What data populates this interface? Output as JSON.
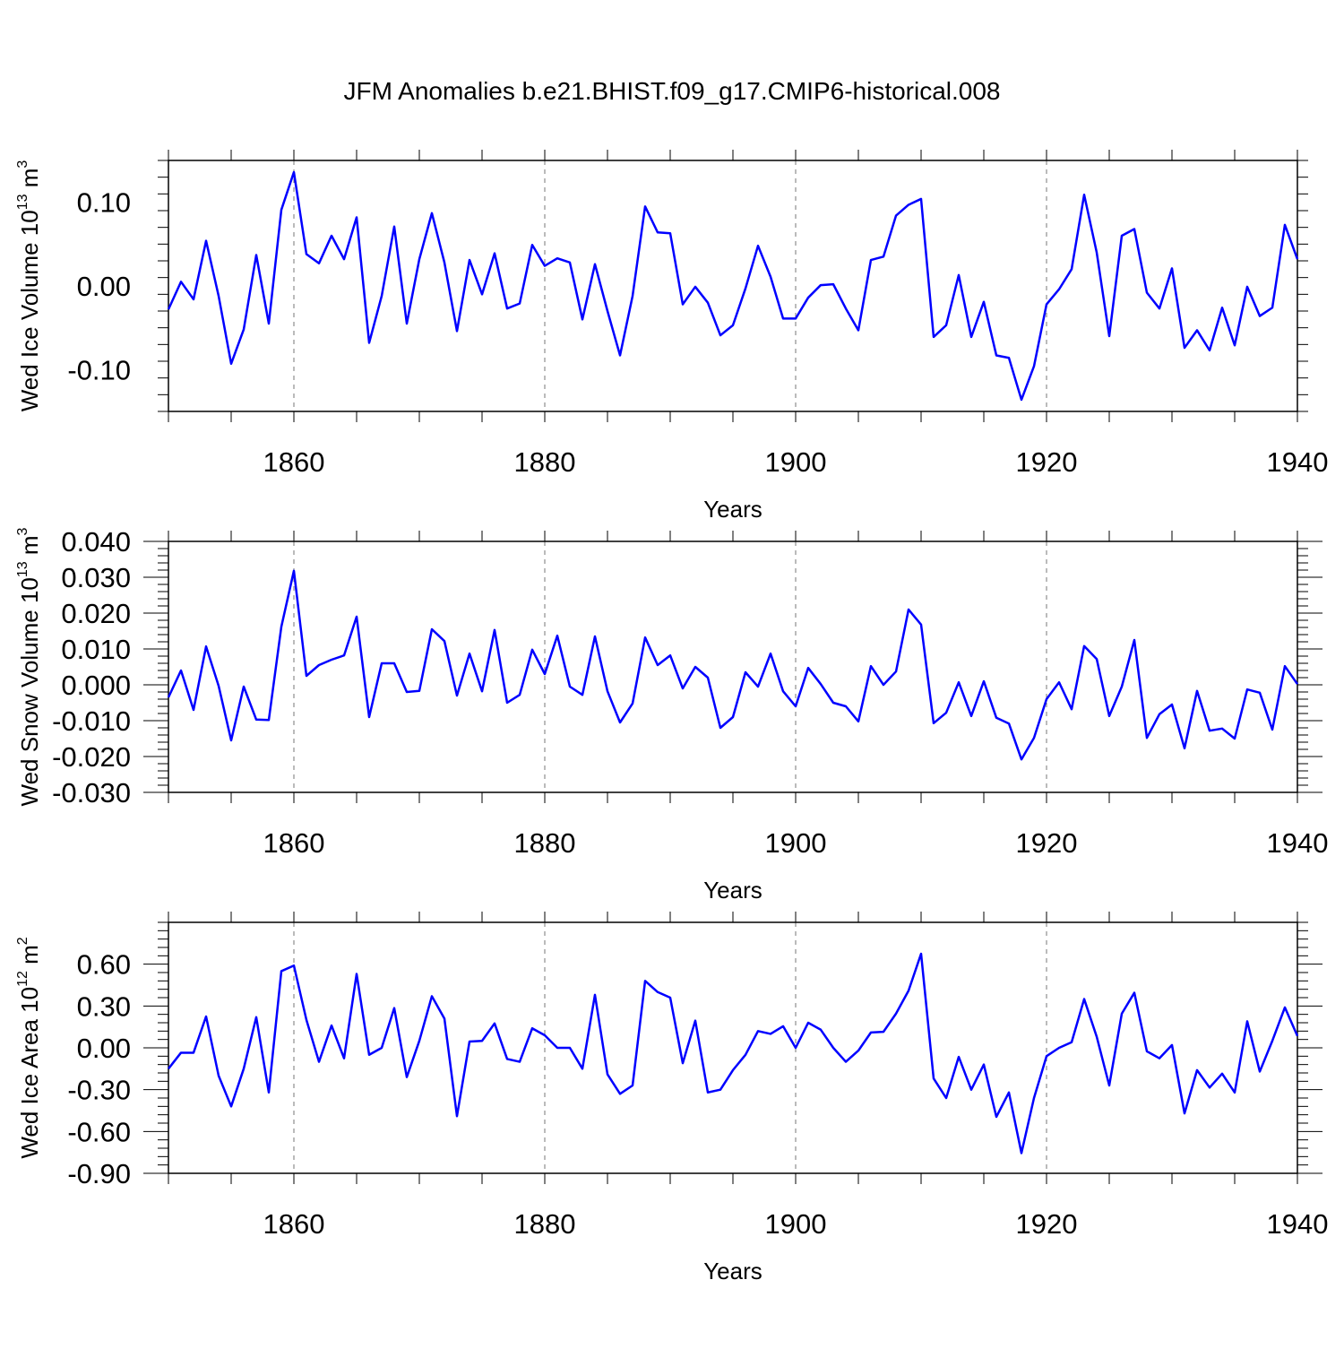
{
  "figure": {
    "title": "JFM Anomalies b.e21.BHIST.f09_g17.CMIP6-historical.008",
    "line_color": "#0000ff"
  },
  "chart_data": [
    {
      "type": "line",
      "ylabel": "Wed Ice Volume 10",
      "ylabel_exp": "13",
      "ylabel_unit": "m",
      "ylabel_unit_exp": "3",
      "xlabel": "Years",
      "xlim": [
        1850,
        1940
      ],
      "ylim": [
        -0.15,
        0.15
      ],
      "xticks": [
        1860,
        1880,
        1900,
        1920,
        1940
      ],
      "xtick_labels": [
        "1860",
        "1880",
        "1900",
        "1920",
        "1940"
      ],
      "yticks": [
        0.1,
        0.0,
        -0.1
      ],
      "ytick_labels": [
        "0.10",
        "0.00",
        "-0.10"
      ],
      "x_start": 1850,
      "values": [
        -0.028,
        0.005,
        -0.016,
        0.054,
        -0.012,
        -0.093,
        -0.052,
        0.037,
        -0.045,
        0.091,
        0.136,
        0.038,
        0.027,
        0.06,
        0.032,
        0.082,
        -0.068,
        -0.012,
        0.071,
        -0.045,
        0.032,
        0.087,
        0.028,
        -0.054,
        0.031,
        -0.01,
        0.039,
        -0.027,
        -0.021,
        0.049,
        0.024,
        0.033,
        0.028,
        -0.04,
        0.026,
        -0.03,
        -0.083,
        -0.012,
        0.095,
        0.064,
        0.063,
        -0.022,
        -0.001,
        -0.02,
        -0.059,
        -0.047,
        -0.003,
        0.048,
        0.011,
        -0.039,
        -0.039,
        -0.014,
        0.001,
        0.002,
        -0.027,
        -0.053,
        0.031,
        0.035,
        0.084,
        0.097,
        0.104,
        -0.061,
        -0.047,
        0.013,
        -0.061,
        -0.019,
        -0.083,
        -0.086,
        -0.136,
        -0.096,
        -0.022,
        -0.004,
        0.02,
        0.109,
        0.04,
        -0.06,
        0.06,
        0.068,
        -0.008,
        -0.027,
        0.021,
        -0.074,
        -0.053,
        -0.077,
        -0.026,
        -0.071,
        -0.001,
        -0.036,
        -0.026,
        0.073,
        0.032
      ]
    },
    {
      "type": "line",
      "ylabel": "Wed Snow Volume 10",
      "ylabel_exp": "13",
      "ylabel_unit": "m",
      "ylabel_unit_exp": "3",
      "xlabel": "Years",
      "xlim": [
        1850,
        1940
      ],
      "ylim": [
        -0.03,
        0.04
      ],
      "xticks": [
        1860,
        1880,
        1900,
        1920,
        1940
      ],
      "xtick_labels": [
        "1860",
        "1880",
        "1900",
        "1920",
        "1940"
      ],
      "yticks": [
        0.04,
        0.03,
        0.02,
        0.01,
        0.0,
        -0.01,
        -0.02,
        -0.03
      ],
      "ytick_labels": [
        "0.040",
        "0.030",
        "0.020",
        "0.010",
        "0.000",
        "-0.010",
        "-0.020",
        "-0.030"
      ],
      "x_start": 1850,
      "values": [
        -0.0035,
        0.004,
        -0.007,
        0.0107,
        -0.0003,
        -0.0155,
        -0.0005,
        -0.0097,
        -0.0098,
        0.0162,
        0.0318,
        0.0025,
        0.0055,
        0.007,
        0.0082,
        0.019,
        -0.009,
        0.006,
        0.006,
        -0.002,
        -0.0017,
        0.0155,
        0.0122,
        -0.003,
        0.0087,
        -0.0018,
        0.0153,
        -0.005,
        -0.0028,
        0.0098,
        0.003,
        0.0137,
        -0.0005,
        -0.0028,
        0.0135,
        -0.0018,
        -0.0105,
        -0.0052,
        0.0132,
        0.0055,
        0.0082,
        -0.001,
        0.005,
        0.002,
        -0.012,
        -0.009,
        0.0035,
        -0.0005,
        0.0087,
        -0.0018,
        -0.006,
        0.0047,
        0.0002,
        -0.005,
        -0.006,
        -0.0102,
        0.0052,
        0.0,
        0.0037,
        0.021,
        0.0168,
        -0.0107,
        -0.0078,
        0.0007,
        -0.0087,
        0.001,
        -0.0092,
        -0.0108,
        -0.0208,
        -0.0148,
        -0.004,
        0.0007,
        -0.0068,
        0.0108,
        0.0072,
        -0.0087,
        -0.0005,
        0.0125,
        -0.0148,
        -0.0082,
        -0.0055,
        -0.0177,
        -0.0017,
        -0.0128,
        -0.0122,
        -0.015,
        -0.0013,
        -0.0022,
        -0.0125,
        0.0052,
        0.0002
      ]
    },
    {
      "type": "line",
      "ylabel": "Wed Ice Area 10",
      "ylabel_exp": "12",
      "ylabel_unit": "m",
      "ylabel_unit_exp": "2",
      "xlabel": "Years",
      "xlim": [
        1850,
        1940
      ],
      "ylim": [
        -0.9,
        0.9
      ],
      "xticks": [
        1860,
        1880,
        1900,
        1920,
        1940
      ],
      "xtick_labels": [
        "1860",
        "1880",
        "1900",
        "1920",
        "1940"
      ],
      "yticks": [
        0.6,
        0.3,
        0.0,
        -0.3,
        -0.6,
        -0.9
      ],
      "ytick_labels": [
        "0.60",
        "0.30",
        "0.00",
        "-0.30",
        "-0.60",
        "-0.90"
      ],
      "x_start": 1850,
      "values": [
        -0.15,
        -0.035,
        -0.035,
        0.225,
        -0.2,
        -0.42,
        -0.15,
        0.22,
        -0.32,
        0.55,
        0.59,
        0.2,
        -0.1,
        0.16,
        -0.075,
        0.53,
        -0.05,
        0.0,
        0.285,
        -0.21,
        0.05,
        0.37,
        0.21,
        -0.49,
        0.045,
        0.05,
        0.175,
        -0.08,
        -0.1,
        0.14,
        0.09,
        0.0,
        0.0,
        -0.15,
        0.38,
        -0.19,
        -0.33,
        -0.27,
        0.48,
        0.4,
        0.36,
        -0.11,
        0.195,
        -0.32,
        -0.3,
        -0.16,
        -0.05,
        0.12,
        0.1,
        0.155,
        0.0,
        0.18,
        0.13,
        0.0,
        -0.1,
        -0.02,
        0.11,
        0.115,
        0.245,
        0.41,
        0.675,
        -0.22,
        -0.36,
        -0.065,
        -0.3,
        -0.12,
        -0.495,
        -0.32,
        -0.755,
        -0.36,
        -0.06,
        0.0,
        0.04,
        0.35,
        0.08,
        -0.27,
        0.245,
        0.395,
        -0.025,
        -0.075,
        0.02,
        -0.47,
        -0.16,
        -0.285,
        -0.185,
        -0.32,
        0.19,
        -0.17,
        0.05,
        0.29,
        0.085
      ]
    }
  ]
}
